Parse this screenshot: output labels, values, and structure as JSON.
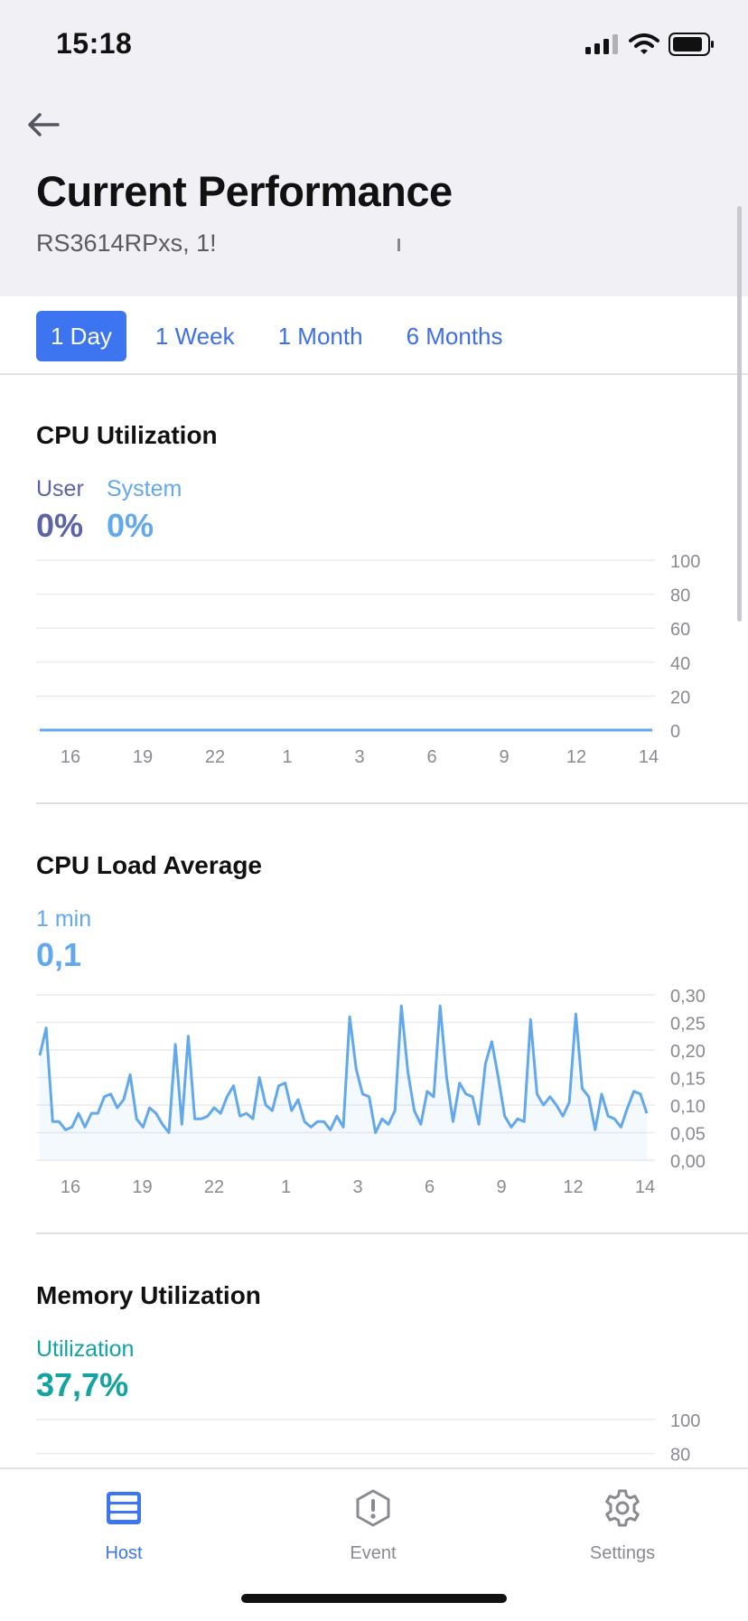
{
  "status_bar": {
    "time": "15:18"
  },
  "header": {
    "title": "Current Performance",
    "device": "RS3614RPxs, 1!"
  },
  "range_tabs": [
    {
      "label": "1 Day",
      "active": true
    },
    {
      "label": "1 Week",
      "active": false
    },
    {
      "label": "1 Month",
      "active": false
    },
    {
      "label": "6 Months",
      "active": false
    }
  ],
  "cpu_util": {
    "title": "CPU Utilization",
    "user_label": "User",
    "user_value": "0%",
    "system_label": "System",
    "system_value": "0%"
  },
  "cpu_load": {
    "title": "CPU Load Average",
    "min_label": "1 min",
    "min_value": "0,1"
  },
  "memory": {
    "title": "Memory Utilization",
    "util_label": "Utilization",
    "util_value": "37,7%"
  },
  "colors": {
    "accent": "#3d75f0",
    "user": "#5a63a8",
    "system": "#62a8ec",
    "load": "#62a8ec",
    "memory": "#13a3a0"
  },
  "tabbar": {
    "items": [
      {
        "label": "Host",
        "icon": "server-icon",
        "active": true
      },
      {
        "label": "Event",
        "icon": "alert-octagon-icon",
        "active": false
      },
      {
        "label": "Settings",
        "icon": "gear-icon",
        "active": false
      }
    ]
  },
  "chart_data": [
    {
      "type": "line",
      "title": "CPU Utilization",
      "x_ticks": [
        "16",
        "19",
        "22",
        "1",
        "3",
        "6",
        "9",
        "12",
        "14"
      ],
      "y_ticks": [
        "100",
        "80",
        "60",
        "40",
        "20",
        "0"
      ],
      "ylim": [
        0,
        100
      ],
      "series": [
        {
          "name": "User",
          "color": "#5a63a8",
          "values": [
            0,
            0,
            0,
            0,
            0,
            0,
            0,
            0,
            0,
            0
          ]
        },
        {
          "name": "System",
          "color": "#62a8ec",
          "values": [
            0,
            0,
            0,
            0,
            0,
            0,
            0,
            0,
            0,
            0
          ]
        }
      ]
    },
    {
      "type": "area",
      "title": "CPU Load Average",
      "x_ticks": [
        "16",
        "19",
        "22",
        "1",
        "3",
        "6",
        "9",
        "12",
        "14"
      ],
      "y_ticks": [
        "0,30",
        "0,25",
        "0,20",
        "0,15",
        "0,10",
        "0,05",
        "0,00"
      ],
      "ylim": [
        0,
        0.3
      ],
      "series": [
        {
          "name": "1 min",
          "color": "#62a8ec",
          "values": [
            0.19,
            0.24,
            0.07,
            0.07,
            0.055,
            0.06,
            0.085,
            0.06,
            0.085,
            0.085,
            0.115,
            0.12,
            0.095,
            0.11,
            0.155,
            0.075,
            0.06,
            0.095,
            0.085,
            0.065,
            0.05,
            0.21,
            0.065,
            0.225,
            0.075,
            0.075,
            0.08,
            0.095,
            0.085,
            0.115,
            0.135,
            0.08,
            0.085,
            0.075,
            0.15,
            0.1,
            0.09,
            0.135,
            0.14,
            0.09,
            0.11,
            0.07,
            0.06,
            0.07,
            0.07,
            0.055,
            0.08,
            0.06,
            0.26,
            0.165,
            0.12,
            0.115,
            0.05,
            0.075,
            0.065,
            0.09,
            0.28,
            0.16,
            0.09,
            0.065,
            0.125,
            0.115,
            0.28,
            0.15,
            0.07,
            0.14,
            0.12,
            0.115,
            0.065,
            0.175,
            0.215,
            0.15,
            0.08,
            0.06,
            0.075,
            0.07,
            0.255,
            0.12,
            0.1,
            0.115,
            0.1,
            0.08,
            0.105,
            0.265,
            0.13,
            0.115,
            0.055,
            0.12,
            0.08,
            0.075,
            0.06,
            0.095,
            0.125,
            0.12,
            0.085
          ]
        }
      ]
    },
    {
      "type": "line",
      "title": "Memory Utilization",
      "y_ticks": [
        "100",
        "80"
      ],
      "ylim": [
        0,
        100
      ],
      "series": [
        {
          "name": "Utilization",
          "color": "#13a3a0",
          "values": []
        }
      ]
    }
  ]
}
